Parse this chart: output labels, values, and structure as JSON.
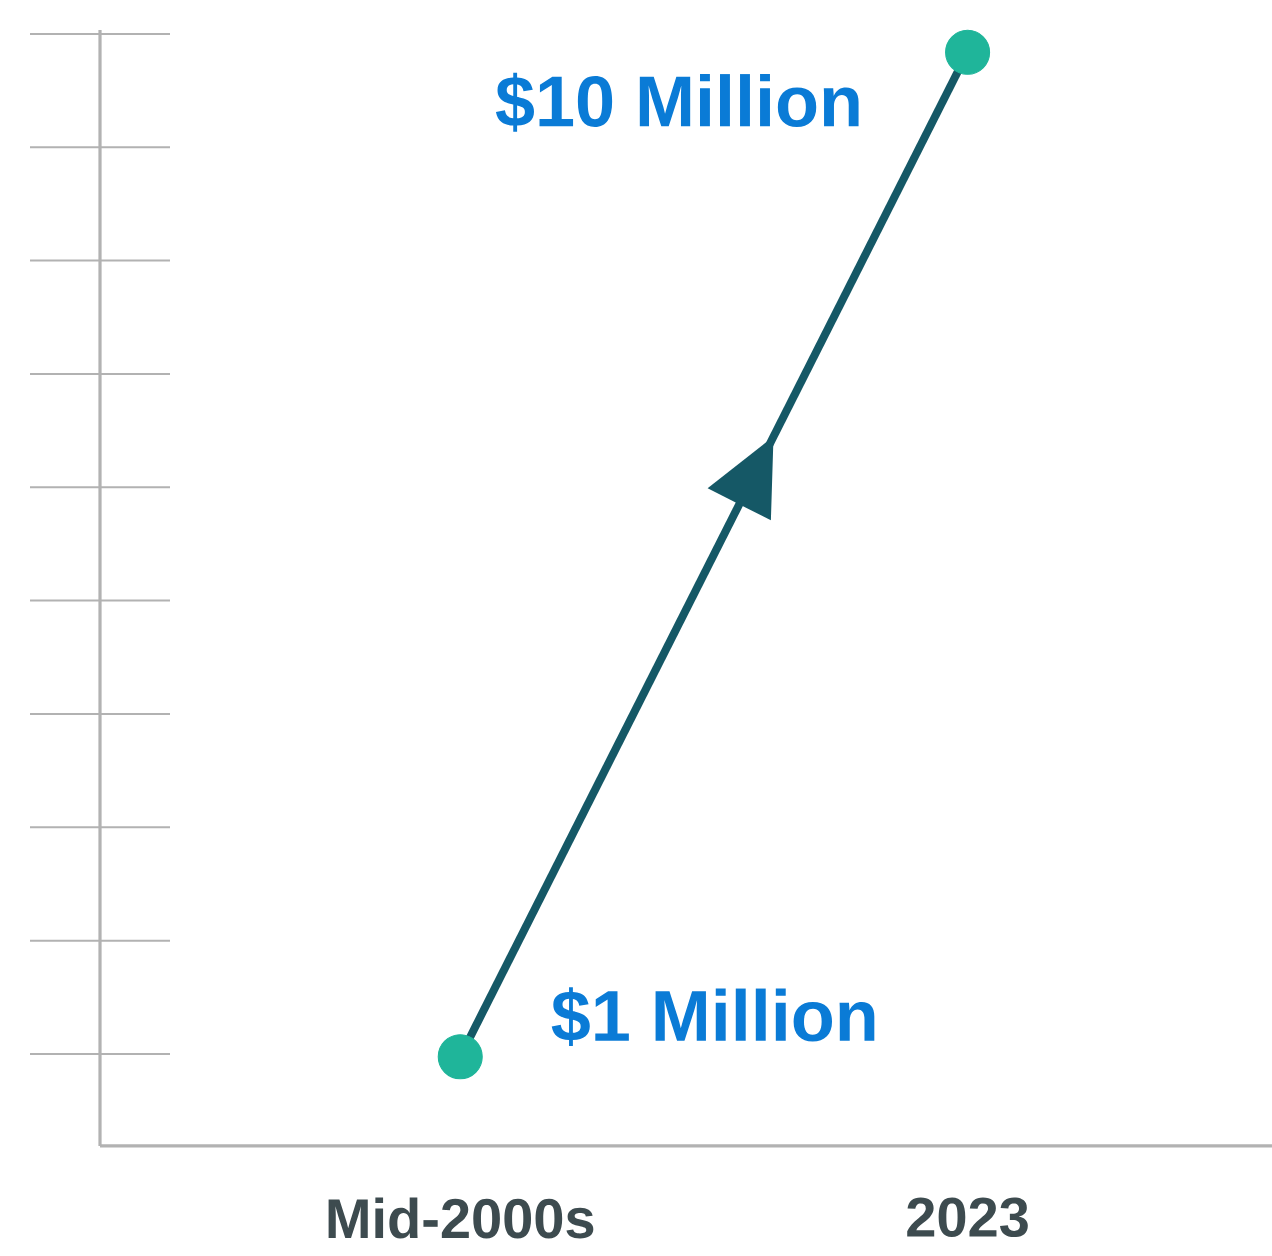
{
  "chart_data": {
    "type": "line",
    "categories": [
      "Mid-2000s",
      "2023"
    ],
    "series": [
      {
        "color": "#155866",
        "values": [
          1,
          10
        ],
        "value_labels": [
          "$1 Million",
          "$10 Million"
        ]
      }
    ],
    "ylim": [
      0.2,
      10.2
    ],
    "tick_labels": "x",
    "marker": "circle"
  }
}
